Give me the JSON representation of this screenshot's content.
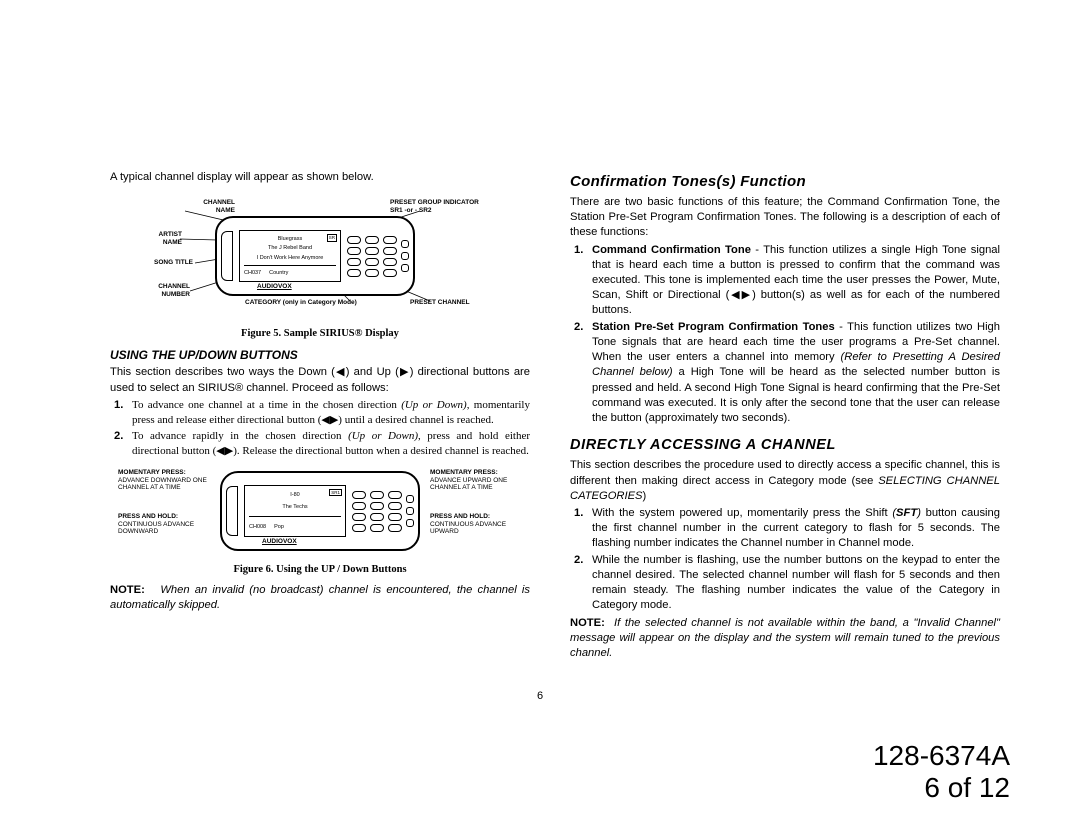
{
  "left": {
    "intro": "A typical channel display will appear as shown below.",
    "fig5": {
      "labels": {
        "channel_name": "CHANNEL NAME",
        "preset_group": "PRESET GROUP INDICATOR SR1 -or - SR2",
        "artist_name": "ARTIST NAME",
        "song_title": "SONG TITLE",
        "channel_number": "CHANNEL NUMBER",
        "category": "CATEGORY (only in Category Mode)",
        "preset_channel": "PRESET CHANNEL"
      },
      "screen": {
        "line1": "Bluegrass",
        "sr": "SR",
        "line2": "The J Rebel Band",
        "line3": "I Don't Work Here Anymore",
        "ch": "CH037",
        "cat": "Country"
      },
      "brand": "AUDIOVOX",
      "caption": "Figure 5.   Sample SIRIUS® Display"
    },
    "section1_heading": "USING THE UP/DOWN BUTTONS",
    "section1_para": "This section describes two ways the Down (◀) and Up (▶) directional buttons are used to select an SIRIUS® channel.  Proceed as follows:",
    "section1_list": [
      "To advance one channel at a time in the chosen direction (Up or Down), momentarily press and release either directional button (◀▶) until a desired channel is reached.",
      "To advance rapidly in the chosen direction (Up or Down), press and hold either directional button (◀▶).  Release the directional button when a desired channel is reached."
    ],
    "fig6": {
      "left_labels": {
        "l1": "MOMENTARY PRESS:",
        "l2": "ADVANCE DOWNWARD ONE CHANNEL AT A TIME",
        "l3": "PRESS AND HOLD:",
        "l4": "CONTINUOUS ADVANCE DOWNWARD"
      },
      "right_labels": {
        "r1": "MOMENTARY PRESS:",
        "r2": "ADVANCE UPWARD ONE CHANNEL AT A TIME",
        "r3": "PRESS AND HOLD:",
        "r4": "CONTINUOUS ADVANCE UPWARD"
      },
      "screen": {
        "line1": "I-80",
        "sr": "SR1",
        "line2": "The Techs",
        "line3": "",
        "ch": "CH008",
        "cat": "Pop"
      },
      "brand": "AUDIOVOX",
      "caption": "Figure 6.   Using the UP / Down Buttons"
    },
    "note_label": "NOTE:",
    "note_text": "When an invalid (no broadcast) channel is encountered, the channel is automatically skipped."
  },
  "right": {
    "heading1": "Confirmation Tones(s) Function",
    "para1": "There are two basic functions of this feature; the Command Confirmation Tone, the Station Pre-Set Program Confirmation Tones.  The following is a description of each of these functions:",
    "list1": [
      {
        "lead": "Command Confirmation Tone",
        "body": " - This function utilizes a single High Tone signal that is heard each time a button is pressed to confirm that the command was executed.  This tone is implemented each time the user presses the Power, Mute, Scan, Shift or Directional (◀▶) button(s) as well as for each of the numbered buttons."
      },
      {
        "lead": "Station Pre-Set Program Confirmation Tones",
        "body": " - This function utilizes two High Tone signals that are heard each time the user programs a Pre-Set channel.  When the user enters a channel into memory (Refer to Presetting A Desired Channel below) a High Tone will be heard as the selected number button is pressed and held.  A second High Tone Signal is heard confirming that the Pre-Set command was executed.  It is only after the second tone that the user can release the button (approximately two seconds)."
      }
    ],
    "heading2": "DIRECTLY ACCESSING A CHANNEL",
    "para2a": "This section describes the procedure used to directly access a specific channel, this is different then making direct access in Category mode (see ",
    "para2b": "SELECTING CHANNEL CATEGORIES",
    "para2c": ")",
    "list2": [
      "With the system powered up, momentarily press the Shift (SFT) button causing the first channel number in the current category to flash  for 5 seconds.  The flashing number indicates the Channel number in Channel mode.",
      "While the number  is flashing, use the number  buttons on the keypad to enter the channel desired.  The selected channel number will flash for 5 seconds and then remain steady.  The flashing number indicates the value of the Category in Category mode."
    ],
    "note2_label": "NOTE:",
    "note2_text": "If  the selected channel is not available within the band, a \"Invalid Channel\"  message will appear on the display and the system will remain tuned to the previous channel."
  },
  "page_num": "6",
  "footer_line1": "128-6374A",
  "footer_line2": "6 of 12"
}
